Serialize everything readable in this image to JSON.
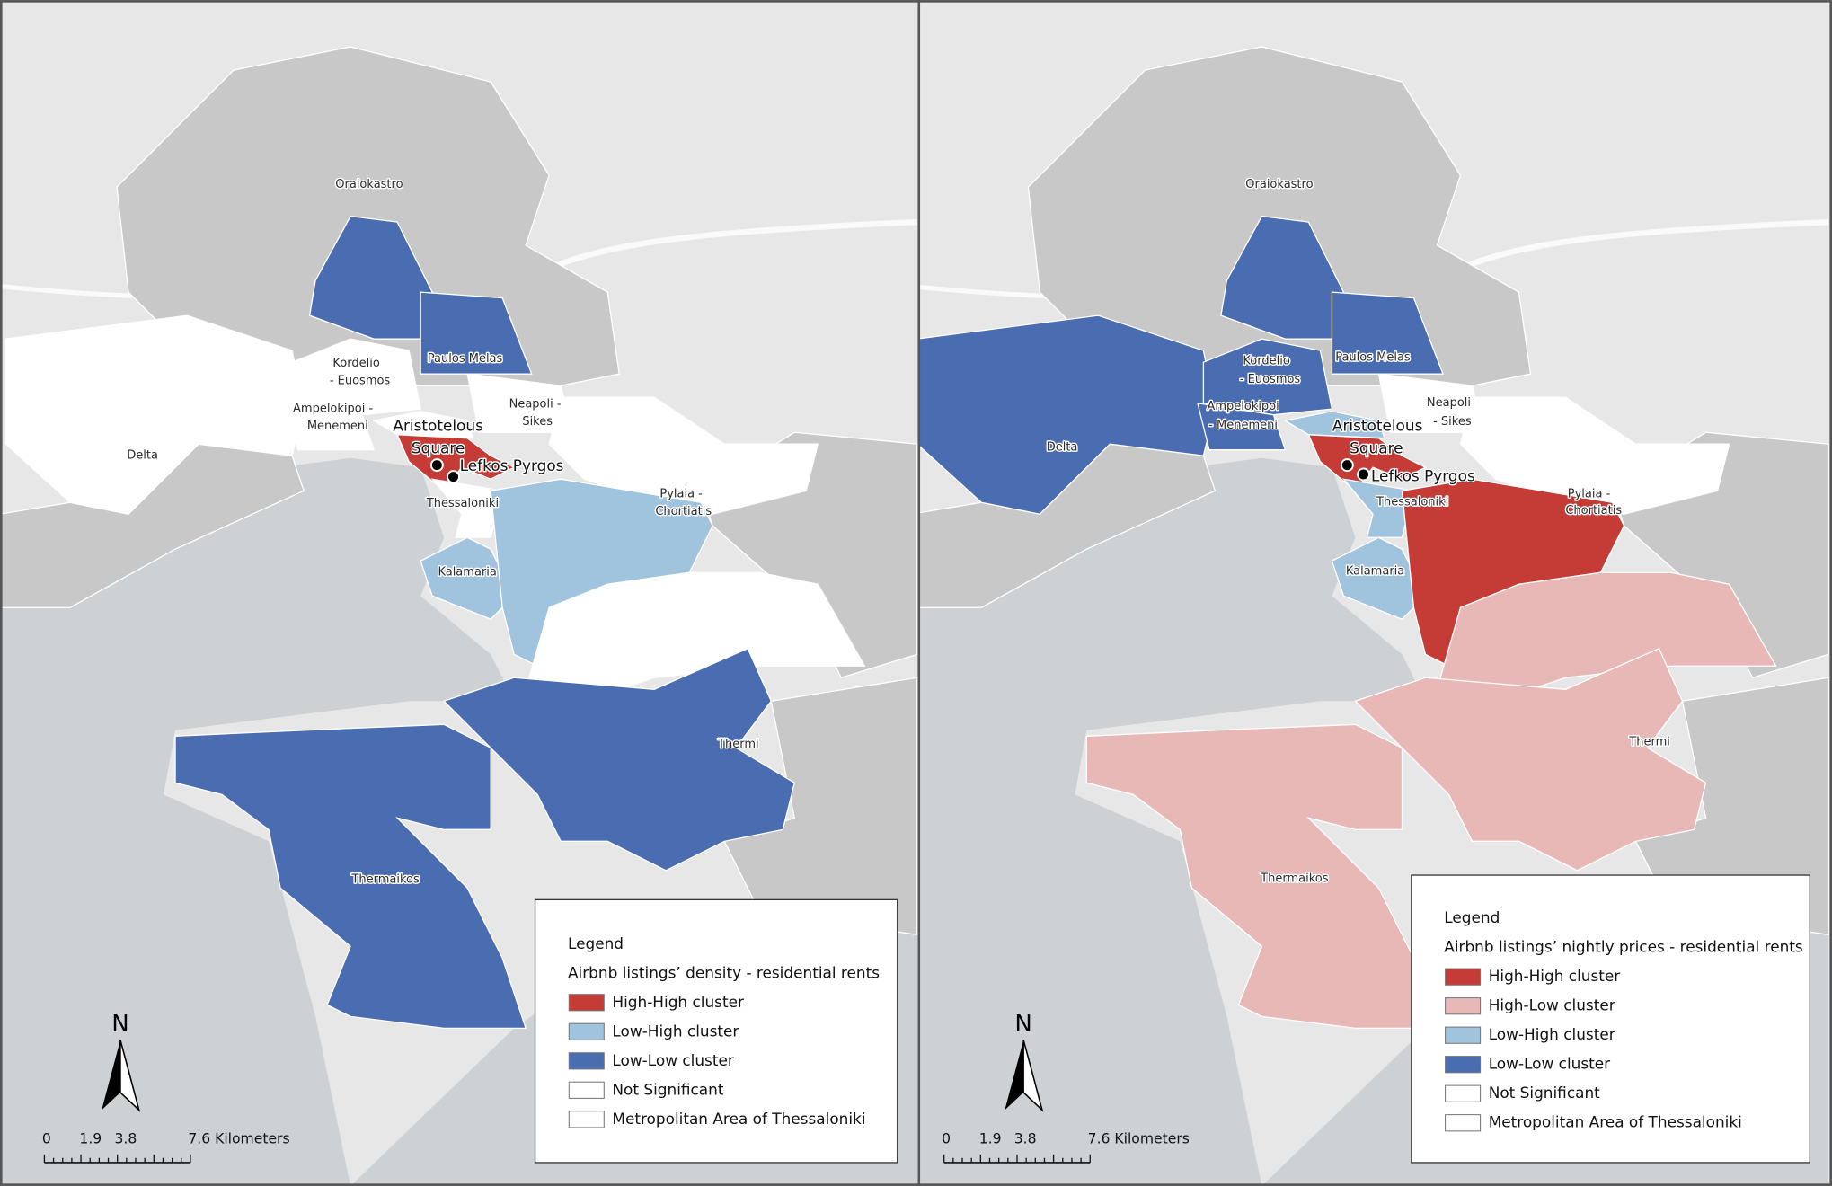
{
  "panels": [
    {
      "places": [
        {
          "label": "Oraiokastro"
        },
        {
          "label": "Kordelio"
        },
        {
          "label": "- Euosmos"
        },
        {
          "label": "Paulos Melas"
        },
        {
          "label": "Ampelokipoi -"
        },
        {
          "label": "Menemeni"
        },
        {
          "label": "Neapoli -"
        },
        {
          "label": "Sikes"
        },
        {
          "label": "Aristotelous"
        },
        {
          "label": "Square"
        },
        {
          "label": "Lefkos Pyrgos"
        },
        {
          "label": "Thessaloniki"
        },
        {
          "label": "Pylaia -"
        },
        {
          "label": "Chortiatis"
        },
        {
          "label": "Kalamaria"
        },
        {
          "label": "Delta"
        },
        {
          "label": "Thermi"
        },
        {
          "label": "Thermaikos"
        }
      ],
      "legend": {
        "title": "Legend",
        "subtitle": "Airbnb listings’ density - residential rents",
        "items": [
          {
            "label": "High-High cluster",
            "color": "#c43c35"
          },
          {
            "label": "Low-High cluster",
            "color": "#a1c4de"
          },
          {
            "label": "Low-Low cluster",
            "color": "#4a6cb0"
          },
          {
            "label": "Not Significant",
            "color": "#ffffff"
          },
          {
            "label": "Metropolitan Area of Thessaloniki",
            "color": "#ffffff"
          }
        ]
      },
      "north": "N",
      "scale": [
        "0",
        "1.9",
        "3.8",
        "7.6 Kilometers"
      ]
    },
    {
      "places": [
        {
          "label": "Oraiokastro"
        },
        {
          "label": "Kordelio"
        },
        {
          "label": "- Euosmos"
        },
        {
          "label": "Paulos Melas"
        },
        {
          "label": "Ampelokipoi"
        },
        {
          "label": "- Menemeni"
        },
        {
          "label": "Neapoli"
        },
        {
          "label": "- Sikes"
        },
        {
          "label": "Aristotelous"
        },
        {
          "label": "Square"
        },
        {
          "label": "Lefkos Pyrgos"
        },
        {
          "label": "Thessaloniki"
        },
        {
          "label": "Pylaia -"
        },
        {
          "label": "Chortiatis"
        },
        {
          "label": "Kalamaria"
        },
        {
          "label": "Delta"
        },
        {
          "label": "Thermi"
        },
        {
          "label": "Thermaikos"
        }
      ],
      "legend": {
        "title": "Legend",
        "subtitle": "Airbnb listings’ nightly prices - residential rents",
        "items": [
          {
            "label": "High-High cluster",
            "color": "#c43c35"
          },
          {
            "label": "High-Low cluster",
            "color": "#e8b8b6"
          },
          {
            "label": "Low-High cluster",
            "color": "#a1c4de"
          },
          {
            "label": "Low-Low cluster",
            "color": "#4a6cb0"
          },
          {
            "label": "Not Significant",
            "color": "#ffffff"
          },
          {
            "label": "Metropolitan Area of Thessaloniki",
            "color": "#ffffff"
          }
        ]
      },
      "north": "N",
      "scale": [
        "0",
        "1.9",
        "3.8",
        "7.6 Kilometers"
      ]
    }
  ]
}
